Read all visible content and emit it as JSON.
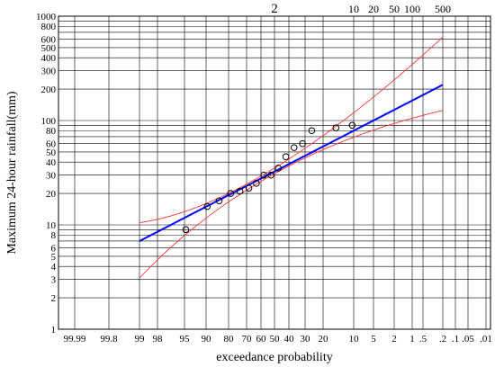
{
  "chart_data": {
    "type": "scatter",
    "xlabel": "exceedance probability",
    "ylabel": "Maximum 24-hour rainfall(mm)",
    "y_scale": "log",
    "ylim": [
      1,
      1000
    ],
    "x_scale": "probability (normal)",
    "x_ticks": [
      "99.99",
      "99.8",
      "99",
      "98",
      "95",
      "90",
      "80",
      "70",
      "60",
      "50",
      "40",
      "30",
      "20",
      "10",
      "5",
      "2",
      "1",
      ".5",
      ".2",
      ".1",
      ".05",
      ".01"
    ],
    "y_ticks": [
      "1",
      "2",
      "3",
      "4",
      "5",
      "6",
      "8",
      "10",
      "20",
      "30",
      "40",
      "50",
      "60",
      "80",
      "100",
      "200",
      "300",
      "400",
      "500",
      "600",
      "800",
      "1000"
    ],
    "top_ticks": [
      "2",
      "10",
      "20",
      "50",
      "100",
      "500"
    ],
    "grid": true,
    "observations": {
      "exceedance_probability_pct": [
        94.7,
        89.5,
        84.2,
        78.9,
        73.7,
        68.4,
        63.2,
        57.9,
        52.6,
        47.4,
        42.1,
        36.8,
        31.6,
        26.3,
        15.8,
        10.5
      ],
      "rainfall_mm": [
        9,
        15,
        17,
        20,
        21,
        22.5,
        25,
        30,
        30,
        35,
        45,
        55,
        60,
        80,
        85,
        90
      ]
    },
    "fitted_line": {
      "exceedance_probability_pct": [
        99,
        0.2
      ],
      "rainfall_mm": [
        7,
        220
      ]
    },
    "upper_bound": {
      "exceedance_probability_pct": [
        99,
        50,
        0.2
      ],
      "rainfall_mm": [
        10.5,
        35,
        630
      ]
    },
    "lower_bound": {
      "exceedance_probability_pct": [
        99,
        50,
        0.2
      ],
      "rainfall_mm": [
        3.1,
        31,
        125
      ]
    },
    "colors": {
      "observations": "#000000",
      "fitted_line": "#0000ff",
      "confidence_bounds": "#ff3333",
      "grid": "#000000"
    }
  }
}
